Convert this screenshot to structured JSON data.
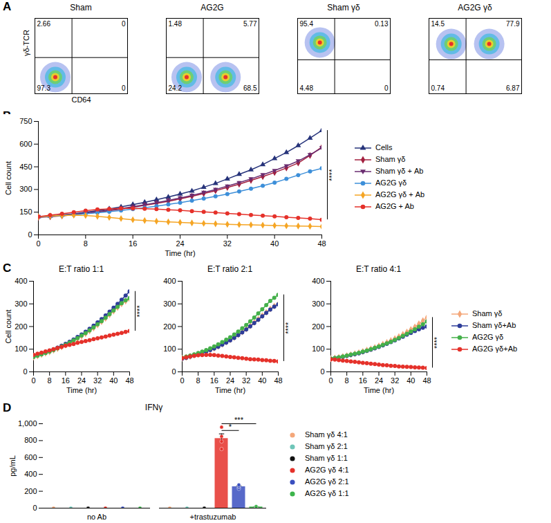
{
  "chart_data": [
    {
      "type": "scatter",
      "panel_label": "A",
      "title": "Sham",
      "x_label": "CD64",
      "y_label": "γδ-TCR",
      "tick_labels": false,
      "xlim": [
        0,
        100
      ],
      "ylim": [
        0,
        100
      ],
      "gate": {
        "x": 40,
        "y": 48
      },
      "quadrants": {
        "upper_left": 2.66,
        "upper_right": 0,
        "lower_left": 97.3,
        "lower_right": 0
      },
      "populations": [
        {
          "x": 22,
          "y": 22
        }
      ]
    },
    {
      "type": "scatter",
      "title": "AG2G",
      "tick_labels": false,
      "xlim": [
        0,
        100
      ],
      "ylim": [
        0,
        100
      ],
      "gate": {
        "x": 40,
        "y": 48
      },
      "quadrants": {
        "upper_left": 1.48,
        "upper_right": 5.77,
        "lower_left": 24.2,
        "lower_right": 68.5
      },
      "populations": [
        {
          "x": 22,
          "y": 22
        },
        {
          "x": 64,
          "y": 22
        }
      ]
    },
    {
      "type": "scatter",
      "title": "Sham γδ",
      "tick_labels": false,
      "xlim": [
        0,
        100
      ],
      "ylim": [
        0,
        100
      ],
      "gate": {
        "x": 40,
        "y": 45
      },
      "quadrants": {
        "upper_left": 95.4,
        "upper_right": 0.13,
        "lower_left": 4.48,
        "lower_right": 0
      },
      "populations": [
        {
          "x": 24,
          "y": 68
        }
      ]
    },
    {
      "type": "scatter",
      "title": "AG2G γδ",
      "tick_labels": false,
      "xlim": [
        0,
        100
      ],
      "ylim": [
        0,
        100
      ],
      "gate": {
        "x": 40,
        "y": 45
      },
      "quadrants": {
        "upper_left": 14.5,
        "upper_right": 77.9,
        "lower_left": 0.74,
        "lower_right": 6.87
      },
      "populations": [
        {
          "x": 24,
          "y": 66
        },
        {
          "x": 65,
          "y": 66
        }
      ]
    },
    {
      "type": "line",
      "panel_label": "B",
      "x_label": "Time (hr)",
      "y_label": "Cell count",
      "legend": "right",
      "x": [
        0,
        2,
        4,
        6,
        8,
        10,
        12,
        14,
        16,
        18,
        20,
        22,
        24,
        26,
        28,
        30,
        32,
        34,
        36,
        38,
        40,
        42,
        44,
        46,
        48
      ],
      "xlim": [
        0,
        48
      ],
      "xticks": [
        0,
        8,
        16,
        24,
        32,
        40,
        48
      ],
      "ylim": [
        0,
        750
      ],
      "yticks": [
        0,
        150,
        300,
        450,
        600,
        750
      ],
      "significance": {
        "label": "****",
        "y1": 100,
        "y2": 690
      },
      "series": [
        {
          "name": "Cells",
          "color": "#26337a",
          "marker": "triangle",
          "values": [
            120,
            125,
            132,
            140,
            150,
            160,
            172,
            185,
            200,
            215,
            232,
            250,
            270,
            290,
            315,
            340,
            370,
            400,
            430,
            465,
            505,
            545,
            590,
            640,
            690
          ]
        },
        {
          "name": "Sham γδ",
          "color": "#a3203f",
          "marker": "diamond",
          "values": [
            115,
            120,
            126,
            133,
            141,
            150,
            160,
            170,
            182,
            195,
            208,
            222,
            238,
            255,
            273,
            292,
            313,
            335,
            360,
            385,
            412,
            442,
            475,
            525,
            580
          ]
        },
        {
          "name": "Sham γδ + Ab",
          "color": "#6a2c70",
          "marker": "triangle-down",
          "values": [
            120,
            124,
            130,
            137,
            145,
            154,
            163,
            174,
            186,
            199,
            213,
            228,
            244,
            261,
            280,
            300,
            322,
            345,
            370,
            397,
            425,
            455,
            488,
            530,
            575
          ]
        },
        {
          "name": "AG2G γδ",
          "color": "#3d8fd9",
          "marker": "circle",
          "values": [
            118,
            122,
            127,
            133,
            139,
            146,
            153,
            161,
            170,
            180,
            190,
            201,
            213,
            226,
            240,
            255,
            270,
            287,
            305,
            325,
            345,
            370,
            395,
            420,
            440
          ]
        },
        {
          "name": "AG2G γδ + Ab",
          "color": "#f5a524",
          "marker": "diamond",
          "values": [
            120,
            125,
            128,
            130,
            128,
            122,
            115,
            108,
            100,
            95,
            90,
            86,
            82,
            79,
            76,
            73,
            70,
            68,
            66,
            64,
            62,
            60,
            58,
            57,
            55
          ]
        },
        {
          "name": "AG2G + Ab",
          "color": "#e5312a",
          "marker": "circle",
          "values": [
            120,
            130,
            140,
            150,
            160,
            168,
            172,
            175,
            175,
            173,
            170,
            166,
            162,
            157,
            152,
            147,
            142,
            137,
            132,
            127,
            122,
            117,
            112,
            107,
            100
          ]
        }
      ]
    },
    {
      "type": "line",
      "panel_label": "C",
      "title": "E:T ratio 1:1",
      "x_label": "Time (hr)",
      "y_label": "Cell count",
      "x": [
        0,
        2,
        4,
        6,
        8,
        10,
        12,
        14,
        16,
        18,
        20,
        22,
        24,
        26,
        28,
        30,
        32,
        34,
        36,
        38,
        40,
        42,
        44,
        46,
        48
      ],
      "xlim": [
        0,
        48
      ],
      "xticks": [
        0,
        8,
        16,
        24,
        32,
        40,
        48
      ],
      "ylim": [
        0,
        400
      ],
      "yticks": [
        0,
        100,
        200,
        300,
        400
      ],
      "significance": {
        "label": "****",
        "y1": 180,
        "y2": 355
      },
      "series": [
        {
          "name": "Sham γδ",
          "color": "#f4a77a",
          "marker": "diamond",
          "values": [
            65,
            70,
            76,
            82,
            88,
            95,
            102,
            110,
            118,
            127,
            136,
            146,
            157,
            168,
            180,
            193,
            207,
            221,
            236,
            252,
            268,
            284,
            300,
            312,
            320
          ]
        },
        {
          "name": "Sham γδ+Ab",
          "color": "#2e3d99",
          "marker": "circle",
          "values": [
            68,
            73,
            79,
            85,
            92,
            99,
            107,
            115,
            124,
            133,
            143,
            154,
            165,
            177,
            190,
            204,
            218,
            233,
            249,
            266,
            283,
            300,
            318,
            337,
            355
          ]
        },
        {
          "name": "AG2G γδ",
          "color": "#44b04a",
          "marker": "circle",
          "values": [
            66,
            71,
            77,
            83,
            89,
            96,
            104,
            112,
            120,
            129,
            139,
            149,
            160,
            171,
            183,
            196,
            210,
            224,
            239,
            255,
            271,
            287,
            303,
            316,
            325
          ]
        },
        {
          "name": "AG2G γδ+Ab",
          "color": "#e5312a",
          "marker": "circle",
          "values": [
            75,
            80,
            85,
            90,
            95,
            100,
            105,
            110,
            115,
            119,
            123,
            128,
            132,
            136,
            140,
            144,
            148,
            152,
            156,
            160,
            164,
            168,
            172,
            176,
            180
          ]
        }
      ]
    },
    {
      "type": "line",
      "title": "E:T ratio 2:1",
      "x_label": "Time (hr)",
      "x": [
        0,
        2,
        4,
        6,
        8,
        10,
        12,
        14,
        16,
        18,
        20,
        22,
        24,
        26,
        28,
        30,
        32,
        34,
        36,
        38,
        40,
        42,
        44,
        46,
        48
      ],
      "xlim": [
        0,
        48
      ],
      "xticks": [
        0,
        8,
        16,
        24,
        32,
        40,
        48
      ],
      "ylim": [
        0,
        400
      ],
      "yticks": [
        0,
        100,
        200,
        300,
        400
      ],
      "significance": {
        "label": "****",
        "y1": 46,
        "y2": 340
      },
      "series": [
        {
          "name": "Sham γδ",
          "color": "#f4a77a",
          "marker": "diamond",
          "values": [
            60,
            64,
            68,
            73,
            78,
            84,
            90,
            97,
            104,
            112,
            121,
            131,
            141,
            152,
            164,
            176,
            189,
            203,
            218,
            233,
            248,
            263,
            278,
            290,
            300
          ]
        },
        {
          "name": "Sham γδ+Ab",
          "color": "#2e3d99",
          "marker": "circle",
          "values": [
            58,
            62,
            67,
            72,
            77,
            83,
            89,
            96,
            103,
            111,
            120,
            129,
            139,
            150,
            162,
            174,
            187,
            201,
            215,
            230,
            245,
            260,
            275,
            288,
            298
          ]
        },
        {
          "name": "AG2G γδ",
          "color": "#44b04a",
          "marker": "circle",
          "values": [
            62,
            67,
            72,
            77,
            83,
            89,
            96,
            104,
            112,
            121,
            131,
            142,
            153,
            165,
            178,
            192,
            207,
            223,
            240,
            258,
            276,
            295,
            313,
            327,
            340
          ]
        },
        {
          "name": "AG2G γδ+Ab",
          "color": "#e5312a",
          "marker": "circle",
          "values": [
            60,
            64,
            68,
            71,
            73,
            74,
            75,
            75,
            74,
            72,
            70,
            68,
            66,
            64,
            62,
            60,
            58,
            56,
            55,
            54,
            52,
            51,
            49,
            48,
            46
          ]
        }
      ]
    },
    {
      "type": "line",
      "title": "E:T ratio 4:1",
      "x_label": "Time (hr)",
      "legend": "right",
      "x": [
        0,
        2,
        4,
        6,
        8,
        10,
        12,
        14,
        16,
        18,
        20,
        22,
        24,
        26,
        28,
        30,
        32,
        34,
        36,
        38,
        40,
        42,
        44,
        46,
        48
      ],
      "xlim": [
        0,
        48
      ],
      "xticks": [
        0,
        8,
        16,
        24,
        32,
        40,
        48
      ],
      "ylim": [
        0,
        400
      ],
      "yticks": [
        0,
        100,
        200,
        300,
        400
      ],
      "significance": {
        "label": "****",
        "y1": 17,
        "y2": 240
      },
      "series": [
        {
          "name": "Sham γδ",
          "color": "#f4a77a",
          "marker": "diamond",
          "values": [
            58,
            61,
            64,
            68,
            72,
            76,
            80,
            85,
            90,
            96,
            102,
            108,
            115,
            122,
            130,
            138,
            147,
            156,
            166,
            176,
            187,
            199,
            212,
            226,
            240
          ]
        },
        {
          "name": "Sham γδ+Ab",
          "color": "#2e3d99",
          "marker": "circle",
          "values": [
            57,
            60,
            63,
            66,
            70,
            74,
            78,
            82,
            87,
            92,
            98,
            104,
            110,
            117,
            124,
            131,
            139,
            147,
            155,
            164,
            172,
            180,
            188,
            195,
            200
          ]
        },
        {
          "name": "AG2G γδ",
          "color": "#44b04a",
          "marker": "circle",
          "values": [
            58,
            61,
            64,
            68,
            72,
            76,
            80,
            84,
            89,
            94,
            100,
            106,
            112,
            119,
            126,
            133,
            141,
            150,
            159,
            168,
            178,
            188,
            199,
            210,
            222
          ]
        },
        {
          "name": "AG2G γδ+Ab",
          "color": "#e5312a",
          "marker": "circle",
          "values": [
            55,
            54,
            52,
            50,
            48,
            46,
            44,
            42,
            40,
            38,
            36,
            34,
            32,
            30,
            29,
            27,
            26,
            24,
            23,
            22,
            21,
            20,
            19,
            18,
            17
          ]
        }
      ]
    },
    {
      "type": "bar",
      "panel_label": "D",
      "title": "IFNγ",
      "y_label": "pg/mL",
      "legend": "right",
      "categories": [
        "no Ab",
        "+trastuzumab"
      ],
      "ylim": [
        0,
        1000
      ],
      "yticks": [
        0,
        200,
        400,
        600,
        800,
        {
          "value": 1000,
          "label": "1,000"
        }
      ],
      "comparisons": [
        {
          "group": "+trastuzumab",
          "from": "AG2G γδ 4:1",
          "to": "AG2G γδ 1:1",
          "label": "***",
          "y": 1000
        },
        {
          "group": "+trastuzumab",
          "from": "AG2G γδ 4:1",
          "to": "AG2G γδ 2:1",
          "label": "*",
          "y": 920
        }
      ],
      "series": [
        {
          "name": "Sham γδ 4:1",
          "color": "#f4a77a",
          "values": [
            0,
            0
          ],
          "errors": [
            0,
            0
          ],
          "points": [
            [
              0,
              0,
              0
            ],
            [
              0,
              0,
              0
            ]
          ]
        },
        {
          "name": "Sham γδ 2:1",
          "color": "#6ec5b8",
          "values": [
            0,
            0
          ],
          "errors": [
            0,
            0
          ],
          "points": [
            [
              0,
              0,
              0
            ],
            [
              0,
              0,
              0
            ]
          ]
        },
        {
          "name": "Sham γδ 1:1",
          "color": "#111111",
          "values": [
            0,
            0
          ],
          "errors": [
            0,
            0
          ],
          "points": [
            [
              0,
              0,
              0
            ],
            [
              0,
              0,
              0
            ]
          ]
        },
        {
          "name": "AG2G γδ 4:1",
          "color": "#e5312a",
          "values": [
            0,
            825
          ],
          "errors": [
            0,
            55
          ],
          "points": [
            [
              0,
              0,
              0
            ],
            [
              960,
              850,
              790,
              700
            ]
          ]
        },
        {
          "name": "AG2G γδ 2:1",
          "color": "#3a4fbf",
          "values": [
            0,
            254
          ],
          "errors": [
            0,
            10
          ],
          "points": [
            [
              0,
              0,
              0
            ],
            [
              230,
              250,
              260,
              275
            ]
          ]
        },
        {
          "name": "AG2G γδ 1:1",
          "color": "#3cb44b",
          "values": [
            0,
            15
          ],
          "errors": [
            0,
            3
          ],
          "points": [
            [
              0,
              0,
              0
            ],
            [
              10,
              15,
              20
            ]
          ]
        }
      ]
    }
  ]
}
